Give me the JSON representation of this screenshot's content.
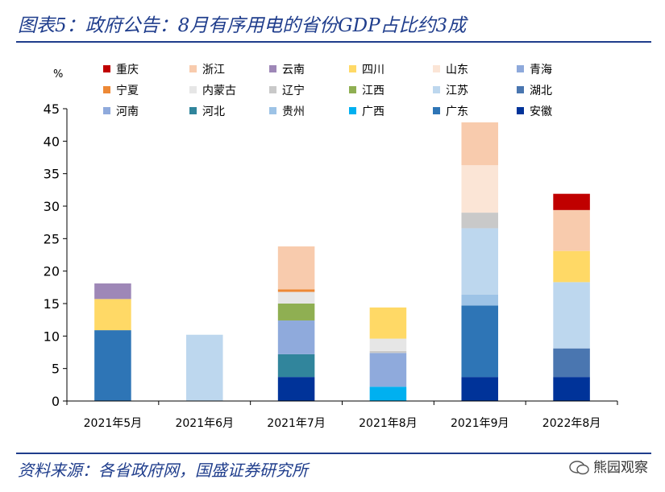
{
  "header": {
    "title": "图表5：政府公告：8月有序用电的省份GDP占比约3成"
  },
  "footer": {
    "source": "资料来源：各省政府网，国盛证券研究所",
    "watermark": "熊园观察"
  },
  "chart_data": {
    "type": "bar",
    "stacked": true,
    "unit": "%",
    "ylim": [
      0,
      45
    ],
    "yticks": [
      0,
      5,
      10,
      15,
      20,
      25,
      30,
      35,
      40,
      45
    ],
    "categories": [
      "2021年5月",
      "2021年6月",
      "2021年7月",
      "2021年8月",
      "2021年9月",
      "2022年8月"
    ],
    "legend_position": "top",
    "series": [
      {
        "name": "安徽",
        "color": "#003399",
        "values": [
          0,
          0,
          3.7,
          0,
          3.7,
          3.7
        ]
      },
      {
        "name": "广东",
        "color": "#2e75b6",
        "values": [
          10.9,
          0,
          0,
          0,
          11.0,
          0
        ]
      },
      {
        "name": "广西",
        "color": "#00b0f0",
        "values": [
          0,
          0,
          0,
          2.2,
          0,
          0
        ]
      },
      {
        "name": "贵州",
        "color": "#9dc3e6",
        "values": [
          0,
          0,
          0,
          0,
          1.7,
          0
        ]
      },
      {
        "name": "河北",
        "color": "#31859c",
        "values": [
          0,
          0,
          3.5,
          0,
          0,
          0
        ]
      },
      {
        "name": "河南",
        "color": "#8faadc",
        "values": [
          0,
          0,
          5.2,
          5.2,
          0,
          0
        ]
      },
      {
        "name": "湖北",
        "color": "#4a76b0",
        "values": [
          0,
          0,
          0,
          0,
          0,
          4.4
        ]
      },
      {
        "name": "江苏",
        "color": "#bdd7ee",
        "values": [
          0,
          10.2,
          0,
          0,
          10.2,
          10.2
        ]
      },
      {
        "name": "江西",
        "color": "#8faf52",
        "values": [
          0,
          0,
          2.6,
          0,
          0,
          0
        ]
      },
      {
        "name": "辽宁",
        "color": "#c9c9c9",
        "values": [
          0,
          0,
          0,
          0.3,
          2.4,
          0
        ]
      },
      {
        "name": "内蒙古",
        "color": "#e6e6e6",
        "values": [
          0,
          0,
          1.8,
          1.9,
          0,
          0
        ]
      },
      {
        "name": "宁夏",
        "color": "#ed8936",
        "values": [
          0,
          0,
          0.4,
          0,
          0,
          0
        ]
      },
      {
        "name": "青海",
        "color": "#8ea9db",
        "values": [
          0,
          0,
          0,
          0,
          0,
          0
        ]
      },
      {
        "name": "山东",
        "color": "#fbe5d6",
        "values": [
          0,
          0,
          0,
          0,
          7.3,
          0
        ]
      },
      {
        "name": "四川",
        "color": "#ffd966",
        "values": [
          4.8,
          0,
          0,
          4.8,
          0,
          4.8
        ]
      },
      {
        "name": "云南",
        "color": "#9e87b7",
        "values": [
          2.4,
          0,
          0,
          0,
          0,
          0
        ]
      },
      {
        "name": "浙江",
        "color": "#f8cbad",
        "values": [
          0,
          0,
          6.6,
          0,
          6.6,
          6.3
        ]
      },
      {
        "name": "重庆",
        "color": "#c00000",
        "values": [
          0,
          0,
          0,
          0,
          0,
          2.5
        ]
      }
    ],
    "legend_order": [
      "重庆",
      "浙江",
      "云南",
      "四川",
      "山东",
      "青海",
      "宁夏",
      "内蒙古",
      "辽宁",
      "江西",
      "江苏",
      "湖北",
      "河南",
      "河北",
      "贵州",
      "广西",
      "广东",
      "安徽"
    ]
  }
}
